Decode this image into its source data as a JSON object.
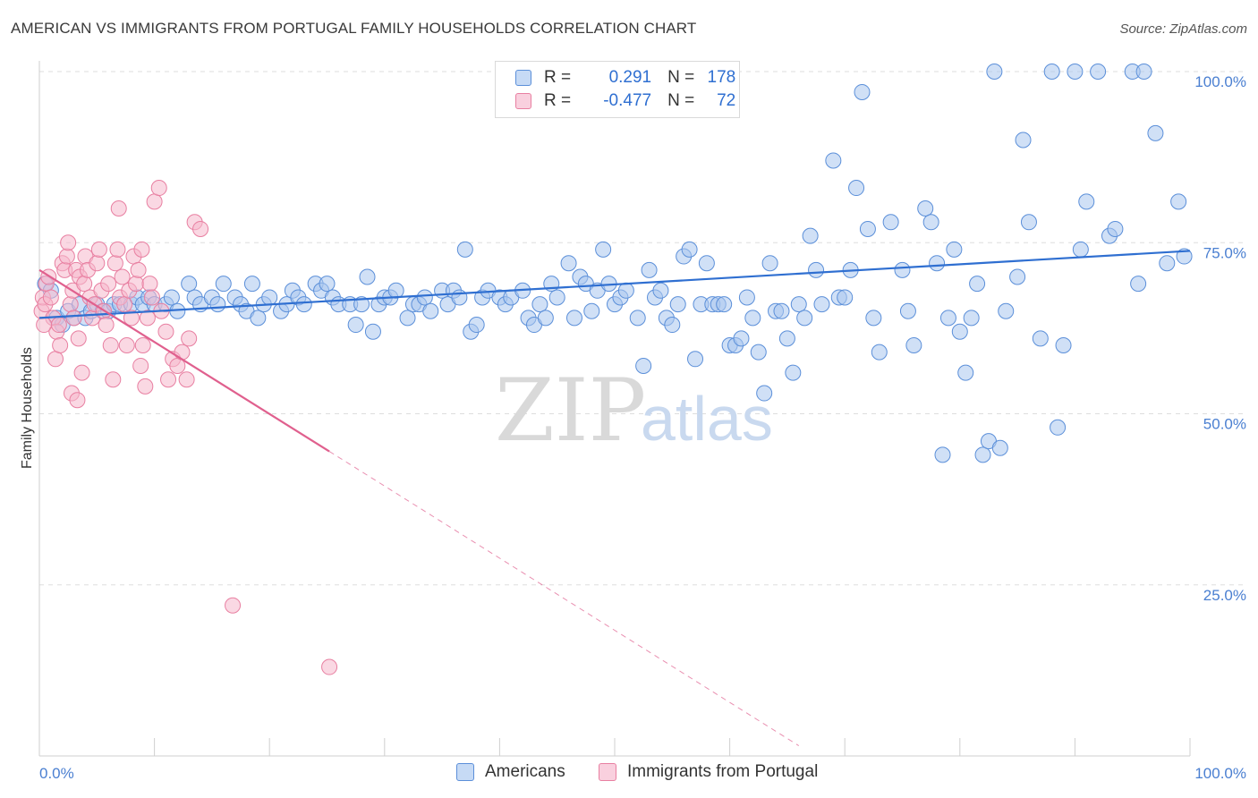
{
  "title": "AMERICAN VS IMMIGRANTS FROM PORTUGAL FAMILY HOUSEHOLDS CORRELATION CHART",
  "source": "Source: ZipAtlas.com",
  "watermark": {
    "zip": "ZIP",
    "atlas": "atlas"
  },
  "colors": {
    "americans_fill": "#a9c7ef",
    "americans_stroke": "#5b8fd9",
    "americans_line": "#2f6fd1",
    "portugal_fill": "#f6b8cc",
    "portugal_stroke": "#e87fa1",
    "portugal_line": "#e0608e",
    "tick_text": "#4a7fd1",
    "grid": "#dddddd"
  },
  "legend": {
    "rows": [
      {
        "r_label": "R =",
        "r_value": "0.291",
        "n_label": "N =",
        "n_value": "178"
      },
      {
        "r_label": "R =",
        "r_value": "-0.477",
        "n_label": "N =",
        "n_value": "72"
      }
    ]
  },
  "bottom_legend": [
    "Americans",
    "Immigrants from Portugal"
  ],
  "chart_data": {
    "type": "scatter",
    "ylabel": "Family Households",
    "xlabel": "",
    "xlim": [
      0,
      100
    ],
    "ylim": [
      0,
      100
    ],
    "x_tick_labels": [
      "0.0%",
      "100.0%"
    ],
    "y_tick_labels": [
      "25.0%",
      "50.0%",
      "75.0%",
      "100.0%"
    ],
    "y_ticks": [
      25,
      50,
      75,
      100
    ],
    "grid": true,
    "legend_position": "top-center",
    "series": [
      {
        "name": "Americans",
        "r": 0.291,
        "n": 178,
        "trend": {
          "x0": 0,
          "y0": 64.0,
          "x1": 100,
          "y1": 73.8
        },
        "points": [
          [
            0.5,
            69
          ],
          [
            1,
            68
          ],
          [
            1.5,
            64
          ],
          [
            2,
            63
          ],
          [
            2.5,
            65
          ],
          [
            3,
            64
          ],
          [
            3.5,
            66
          ],
          [
            4,
            64
          ],
          [
            4.5,
            65
          ],
          [
            5,
            66
          ],
          [
            5.5,
            65
          ],
          [
            6,
            65
          ],
          [
            6.5,
            66
          ],
          [
            7,
            66
          ],
          [
            8,
            66
          ],
          [
            8.5,
            67
          ],
          [
            9,
            66
          ],
          [
            9.5,
            67
          ],
          [
            10,
            66
          ],
          [
            11,
            66
          ],
          [
            11.5,
            67
          ],
          [
            12,
            65
          ],
          [
            13,
            69
          ],
          [
            13.5,
            67
          ],
          [
            14,
            66
          ],
          [
            15,
            67
          ],
          [
            15.5,
            66
          ],
          [
            16,
            69
          ],
          [
            17,
            67
          ],
          [
            17.5,
            66
          ],
          [
            18,
            65
          ],
          [
            18.5,
            69
          ],
          [
            19,
            64
          ],
          [
            19.5,
            66
          ],
          [
            20,
            67
          ],
          [
            21,
            65
          ],
          [
            21.5,
            66
          ],
          [
            22,
            68
          ],
          [
            22.5,
            67
          ],
          [
            23,
            66
          ],
          [
            24,
            69
          ],
          [
            24.5,
            68
          ],
          [
            25,
            69
          ],
          [
            25.5,
            67
          ],
          [
            26,
            66
          ],
          [
            27,
            66
          ],
          [
            27.5,
            63
          ],
          [
            28,
            66
          ],
          [
            28.5,
            70
          ],
          [
            29,
            62
          ],
          [
            29.5,
            66
          ],
          [
            30,
            67
          ],
          [
            30.5,
            67
          ],
          [
            31,
            68
          ],
          [
            32,
            64
          ],
          [
            32.5,
            66
          ],
          [
            33,
            66
          ],
          [
            33.5,
            67
          ],
          [
            34,
            65
          ],
          [
            35,
            68
          ],
          [
            35.5,
            66
          ],
          [
            36,
            68
          ],
          [
            36.5,
            67
          ],
          [
            37,
            74
          ],
          [
            37.5,
            62
          ],
          [
            38,
            63
          ],
          [
            38.5,
            67
          ],
          [
            39,
            68
          ],
          [
            40,
            67
          ],
          [
            40.5,
            66
          ],
          [
            41,
            67
          ],
          [
            42,
            68
          ],
          [
            42.5,
            64
          ],
          [
            43,
            63
          ],
          [
            43.5,
            66
          ],
          [
            44,
            64
          ],
          [
            44.5,
            69
          ],
          [
            45,
            67
          ],
          [
            46,
            72
          ],
          [
            46.5,
            64
          ],
          [
            47,
            70
          ],
          [
            47.5,
            69
          ],
          [
            48,
            65
          ],
          [
            48.5,
            68
          ],
          [
            49,
            74
          ],
          [
            49.5,
            69
          ],
          [
            50,
            66
          ],
          [
            50.5,
            67
          ],
          [
            51,
            68
          ],
          [
            52,
            64
          ],
          [
            52.5,
            57
          ],
          [
            53,
            71
          ],
          [
            53.5,
            67
          ],
          [
            54,
            68
          ],
          [
            54.5,
            64
          ],
          [
            55,
            63
          ],
          [
            55.5,
            66
          ],
          [
            56,
            73
          ],
          [
            56.5,
            74
          ],
          [
            57,
            58
          ],
          [
            57.5,
            66
          ],
          [
            58,
            72
          ],
          [
            58.5,
            66
          ],
          [
            59,
            66
          ],
          [
            59.5,
            66
          ],
          [
            60,
            60
          ],
          [
            60.5,
            60
          ],
          [
            61,
            61
          ],
          [
            61.5,
            67
          ],
          [
            62,
            64
          ],
          [
            62.5,
            59
          ],
          [
            63,
            53
          ],
          [
            63.5,
            72
          ],
          [
            64,
            65
          ],
          [
            64.5,
            65
          ],
          [
            65,
            61
          ],
          [
            65.5,
            56
          ],
          [
            66,
            66
          ],
          [
            66.5,
            64
          ],
          [
            67,
            76
          ],
          [
            67.5,
            71
          ],
          [
            68,
            66
          ],
          [
            69,
            87
          ],
          [
            69.5,
            67
          ],
          [
            70,
            67
          ],
          [
            70.5,
            71
          ],
          [
            71,
            83
          ],
          [
            71.5,
            97
          ],
          [
            72,
            77
          ],
          [
            72.5,
            64
          ],
          [
            73,
            59
          ],
          [
            74,
            78
          ],
          [
            75,
            71
          ],
          [
            75.5,
            65
          ],
          [
            76,
            60
          ],
          [
            77,
            80
          ],
          [
            77.5,
            78
          ],
          [
            78,
            72
          ],
          [
            78.5,
            44
          ],
          [
            79,
            64
          ],
          [
            79.5,
            74
          ],
          [
            80,
            62
          ],
          [
            80.5,
            56
          ],
          [
            81,
            64
          ],
          [
            81.5,
            69
          ],
          [
            82,
            44
          ],
          [
            82.5,
            46
          ],
          [
            83,
            100
          ],
          [
            83.5,
            45
          ],
          [
            84,
            65
          ],
          [
            85,
            70
          ],
          [
            85.5,
            90
          ],
          [
            86,
            78
          ],
          [
            87,
            61
          ],
          [
            88,
            100
          ],
          [
            88.5,
            48
          ],
          [
            89,
            60
          ],
          [
            90,
            100
          ],
          [
            90.5,
            74
          ],
          [
            91,
            81
          ],
          [
            92,
            100
          ],
          [
            93,
            76
          ],
          [
            93.5,
            77
          ],
          [
            95,
            100
          ],
          [
            95.5,
            69
          ],
          [
            96,
            100
          ],
          [
            97,
            91
          ],
          [
            98,
            72
          ],
          [
            99,
            81
          ],
          [
            99.5,
            73
          ]
        ]
      },
      {
        "name": "Immigrants from Portugal",
        "r": -0.477,
        "n": 72,
        "trend": {
          "x0": 0,
          "y0": 71.0,
          "x1": 25.2,
          "y1": 44.5,
          "dash_x1": 66.0,
          "dash_y1": 1.5
        },
        "points": [
          [
            0.2,
            65
          ],
          [
            0.3,
            67
          ],
          [
            0.5,
            66
          ],
          [
            0.6,
            69
          ],
          [
            0.8,
            70
          ],
          [
            1,
            67
          ],
          [
            1.2,
            64
          ],
          [
            1.4,
            58
          ],
          [
            1.5,
            62
          ],
          [
            1.7,
            63
          ],
          [
            1.8,
            60
          ],
          [
            2,
            72
          ],
          [
            2.2,
            71
          ],
          [
            2.4,
            73
          ],
          [
            2.5,
            75
          ],
          [
            2.7,
            66
          ],
          [
            2.9,
            68
          ],
          [
            3,
            64
          ],
          [
            3.2,
            71
          ],
          [
            3.4,
            61
          ],
          [
            3.5,
            70
          ],
          [
            3.7,
            56
          ],
          [
            3.9,
            69
          ],
          [
            4,
            73
          ],
          [
            4.2,
            71
          ],
          [
            4.4,
            67
          ],
          [
            4.6,
            64
          ],
          [
            4.8,
            66
          ],
          [
            5,
            72
          ],
          [
            5.2,
            74
          ],
          [
            5.4,
            68
          ],
          [
            5.6,
            65
          ],
          [
            5.8,
            63
          ],
          [
            6,
            69
          ],
          [
            6.2,
            60
          ],
          [
            6.4,
            55
          ],
          [
            6.6,
            72
          ],
          [
            6.8,
            74
          ],
          [
            7,
            67
          ],
          [
            7.2,
            70
          ],
          [
            7.4,
            66
          ],
          [
            7.6,
            60
          ],
          [
            7.8,
            68
          ],
          [
            8,
            64
          ],
          [
            8.2,
            73
          ],
          [
            8.4,
            69
          ],
          [
            8.6,
            71
          ],
          [
            8.8,
            57
          ],
          [
            9,
            60
          ],
          [
            9.2,
            54
          ],
          [
            9.4,
            64
          ],
          [
            9.6,
            69
          ],
          [
            9.8,
            67
          ],
          [
            10,
            81
          ],
          [
            10.4,
            83
          ],
          [
            10.6,
            65
          ],
          [
            11,
            62
          ],
          [
            11.2,
            55
          ],
          [
            11.6,
            58
          ],
          [
            12,
            57
          ],
          [
            12.4,
            59
          ],
          [
            12.8,
            55
          ],
          [
            13,
            61
          ],
          [
            13.5,
            78
          ],
          [
            14,
            77
          ],
          [
            2.8,
            53
          ],
          [
            3.3,
            52
          ],
          [
            6.9,
            80
          ],
          [
            16.8,
            22
          ],
          [
            25.2,
            13
          ],
          [
            0.4,
            63
          ],
          [
            8.9,
            74
          ]
        ]
      }
    ]
  }
}
